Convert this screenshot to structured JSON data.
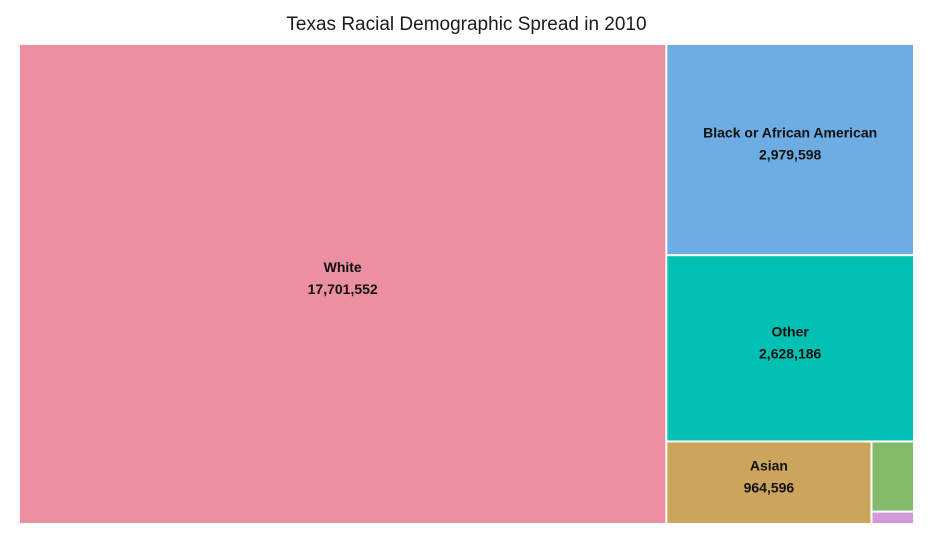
{
  "chart_data": {
    "type": "treemap",
    "title": "Texas Racial Demographic Spread in 2010",
    "items": [
      {
        "label": "White",
        "value": 17701552,
        "value_label": "17,701,552",
        "color": "#ec8fa0"
      },
      {
        "label": "Black or African American",
        "value": 2979598,
        "value_label": "2,979,598",
        "color": "#6eade3"
      },
      {
        "label": "Other",
        "value": 2628186,
        "value_label": "2,628,186",
        "color": "#02c0b2"
      },
      {
        "label": "Asian",
        "value": 964596,
        "value_label": "964,596",
        "color": "#cca55c"
      },
      {
        "label": "",
        "value": 170000,
        "value_label": "",
        "color": "#83bb6a"
      },
      {
        "label": "",
        "value": 30000,
        "value_label": "",
        "color": "#d497d8"
      }
    ]
  }
}
